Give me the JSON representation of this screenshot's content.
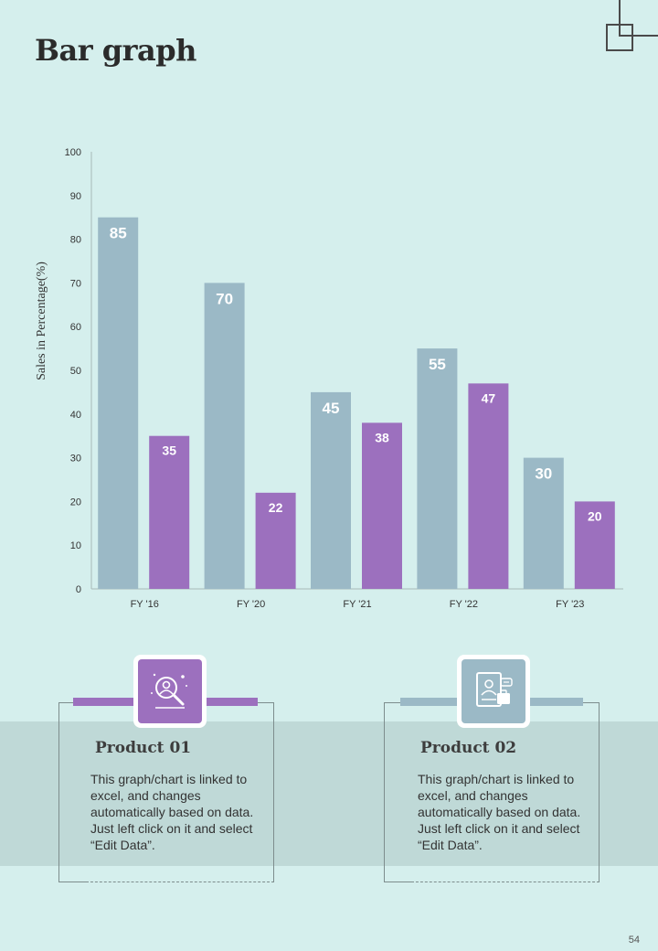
{
  "title": "Bar graph",
  "chart_data": {
    "type": "bar",
    "categories": [
      "FY '16",
      "FY '20",
      "FY '21",
      "FY '22",
      "FY '23"
    ],
    "series": [
      {
        "name": "Product 01 (blue)",
        "color": "#9bb9c6",
        "values": [
          85,
          70,
          45,
          55,
          30
        ]
      },
      {
        "name": "Product 02 (purple)",
        "color": "#9c70be",
        "values": [
          35,
          22,
          38,
          47,
          20
        ]
      }
    ],
    "ylabel": "Sales in Percentage(%)",
    "xlabel": "",
    "ylim": [
      0,
      100
    ],
    "yticks": [
      0,
      10,
      20,
      30,
      40,
      50,
      60,
      70,
      80,
      90,
      100
    ],
    "grid": false,
    "legend": "none"
  },
  "products": [
    {
      "title": "Product 01",
      "text": "This graph/chart is linked to excel, and changes automatically based on data. Just left click on it and select “Edit Data”.",
      "icon": "user-search-icon",
      "color": "#9c70be"
    },
    {
      "title": "Product 02",
      "text": "This graph/chart is linked to excel, and changes automatically based on data. Just left click on it and select “Edit Data”.",
      "icon": "document-profile-icon",
      "color": "#9bb9c6"
    }
  ],
  "page_number": "54"
}
